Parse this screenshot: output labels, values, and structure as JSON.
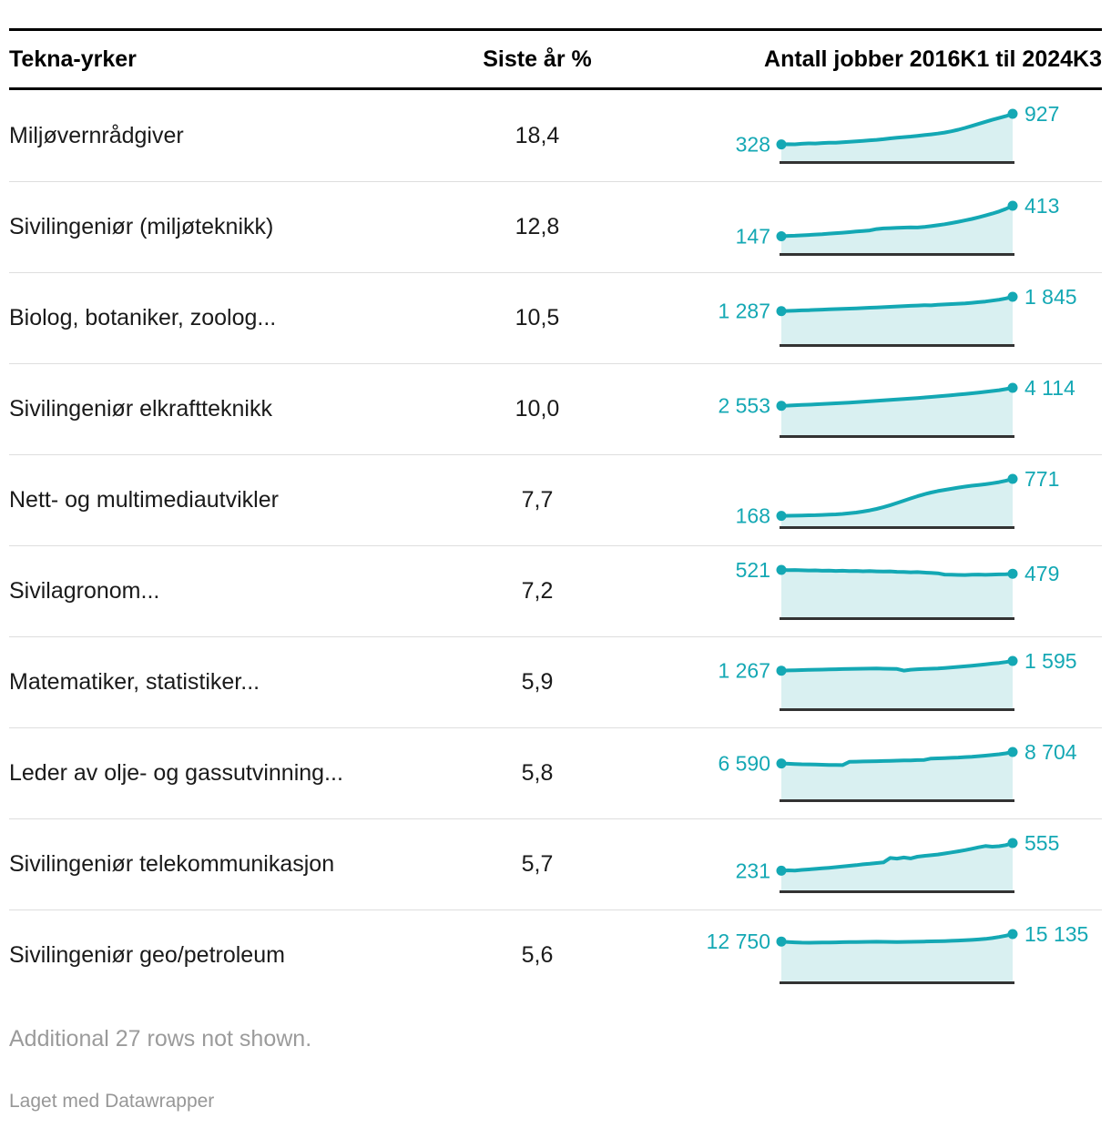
{
  "header": {
    "profession": "Tekna-yrker",
    "percent": "Siste år %",
    "jobs": "Antall jobber 2016K1 til 2024K3"
  },
  "footer": {
    "note": "Additional 27 rows not shown.",
    "credit": "Laget med Datawrapper"
  },
  "colors": {
    "accent": "#14a8b4",
    "area_fill": "#d9f0f1",
    "baseline": "#333333",
    "text": "#1a1a1a",
    "muted": "#9b9b9b",
    "divider": "#dedede",
    "rule": "#000000"
  },
  "chart_data": {
    "type": "table",
    "title": "",
    "columns": [
      "Tekna-yrker",
      "Siste år %",
      "Antall jobber 2016K1 til 2024K3"
    ],
    "sparkline_type": "area",
    "x_range": [
      "2016K1",
      "2024K3"
    ],
    "points_per_series": 35,
    "y_min": 0,
    "rows": [
      {
        "label": "Miljøvernrådgiver",
        "pct": "18,4",
        "start": 328,
        "end": 927,
        "start_label": "328",
        "end_label": "927",
        "series": [
          328,
          332,
          330,
          340,
          348,
          345,
          355,
          362,
          360,
          370,
          380,
          388,
          398,
          408,
          418,
          430,
          445,
          458,
          470,
          482,
          495,
          510,
          525,
          540,
          560,
          585,
          615,
          650,
          690,
          730,
          770,
          810,
          845,
          880,
          927
        ]
      },
      {
        "label": "Sivilingeniør (miljøteknikk)",
        "pct": "12,8",
        "start": 147,
        "end": 413,
        "start_label": "147",
        "end_label": "413",
        "series": [
          147,
          150,
          152,
          155,
          158,
          162,
          165,
          170,
          174,
          178,
          183,
          188,
          193,
          198,
          210,
          215,
          218,
          220,
          222,
          224,
          223,
          228,
          235,
          243,
          252,
          262,
          273,
          285,
          298,
          312,
          328,
          345,
          363,
          385,
          413
        ]
      },
      {
        "label": "Biolog, botaniker, zoolog...",
        "pct": "10,5",
        "start": 1287,
        "end": 1845,
        "start_label": "1 287",
        "end_label": "1 845",
        "series": [
          1287,
          1295,
          1305,
          1315,
          1325,
          1335,
          1345,
          1355,
          1365,
          1375,
          1385,
          1395,
          1405,
          1418,
          1430,
          1442,
          1455,
          1468,
          1480,
          1492,
          1505,
          1520,
          1510,
          1535,
          1548,
          1560,
          1575,
          1590,
          1610,
          1635,
          1660,
          1695,
          1730,
          1780,
          1845
        ]
      },
      {
        "label": "Sivilingeniør elkraftteknikk",
        "pct": "10,0",
        "start": 2553,
        "end": 4114,
        "start_label": "2 553",
        "end_label": "4 114",
        "series": [
          2553,
          2575,
          2600,
          2625,
          2650,
          2680,
          2710,
          2740,
          2770,
          2800,
          2835,
          2870,
          2905,
          2940,
          2980,
          3020,
          3060,
          3100,
          3140,
          3185,
          3230,
          3275,
          3320,
          3370,
          3420,
          3470,
          3525,
          3580,
          3640,
          3700,
          3765,
          3835,
          3910,
          4000,
          4114
        ]
      },
      {
        "label": "Nett- og multimediautvikler",
        "pct": "7,7",
        "start": 168,
        "end": 771,
        "start_label": "168",
        "end_label": "771",
        "series": [
          168,
          170,
          172,
          175,
          178,
          180,
          184,
          188,
          193,
          200,
          210,
          222,
          238,
          258,
          282,
          310,
          342,
          378,
          415,
          452,
          488,
          520,
          548,
          572,
          592,
          610,
          628,
          645,
          660,
          672,
          684,
          700,
          718,
          740,
          771
        ]
      },
      {
        "label": "Sivilagronom...",
        "pct": "7,2",
        "start": 521,
        "end": 479,
        "start_label": "521",
        "end_label": "479",
        "series": [
          521,
          519,
          520,
          517,
          515,
          516,
          512,
          514,
          510,
          512,
          508,
          510,
          506,
          508,
          505,
          503,
          505,
          500,
          498,
          495,
          497,
          492,
          488,
          484,
          470,
          468,
          466,
          465,
          468,
          470,
          467,
          470,
          472,
          474,
          479
        ]
      },
      {
        "label": "Matematiker, statistiker...",
        "pct": "5,9",
        "start": 1267,
        "end": 1595,
        "start_label": "1 267",
        "end_label": "1 595",
        "series": [
          1267,
          1275,
          1282,
          1288,
          1295,
          1300,
          1305,
          1310,
          1315,
          1322,
          1328,
          1332,
          1335,
          1338,
          1340,
          1335,
          1330,
          1325,
          1270,
          1300,
          1315,
          1325,
          1335,
          1345,
          1360,
          1378,
          1395,
          1415,
          1435,
          1458,
          1480,
          1505,
          1528,
          1558,
          1595
        ]
      },
      {
        "label": "Leder av olje- og gassutvinning...",
        "pct": "5,8",
        "start": 6590,
        "end": 8704,
        "start_label": "6 590",
        "end_label": "8 704",
        "series": [
          6590,
          6540,
          6490,
          6450,
          6420,
          6390,
          6360,
          6330,
          6310,
          6300,
          6900,
          6930,
          6960,
          6990,
          7020,
          7050,
          7080,
          7110,
          7140,
          7170,
          7210,
          7250,
          7500,
          7540,
          7580,
          7630,
          7690,
          7760,
          7840,
          7930,
          8030,
          8150,
          8280,
          8450,
          8704
        ]
      },
      {
        "label": "Sivilingeniør telekommunikasjon",
        "pct": "5,7",
        "start": 231,
        "end": 555,
        "start_label": "231",
        "end_label": "555",
        "series": [
          231,
          235,
          233,
          240,
          246,
          252,
          258,
          265,
          272,
          280,
          288,
          296,
          305,
          312,
          320,
          328,
          380,
          372,
          385,
          375,
          395,
          405,
          412,
          420,
          432,
          445,
          458,
          472,
          488,
          505,
          520,
          512,
          518,
          530,
          555
        ]
      },
      {
        "label": "Sivilingeniør geo/petroleum",
        "pct": "5,6",
        "start": 12750,
        "end": 15135,
        "start_label": "12 750",
        "end_label": "15 135",
        "series": [
          12750,
          12600,
          12480,
          12400,
          12380,
          12400,
          12420,
          12450,
          12500,
          12550,
          12600,
          12580,
          12620,
          12650,
          12680,
          12650,
          12620,
          12600,
          12620,
          12650,
          12700,
          12750,
          12800,
          12850,
          12900,
          12980,
          13060,
          13150,
          13280,
          13420,
          13600,
          13850,
          14200,
          14600,
          15135
        ]
      }
    ]
  }
}
